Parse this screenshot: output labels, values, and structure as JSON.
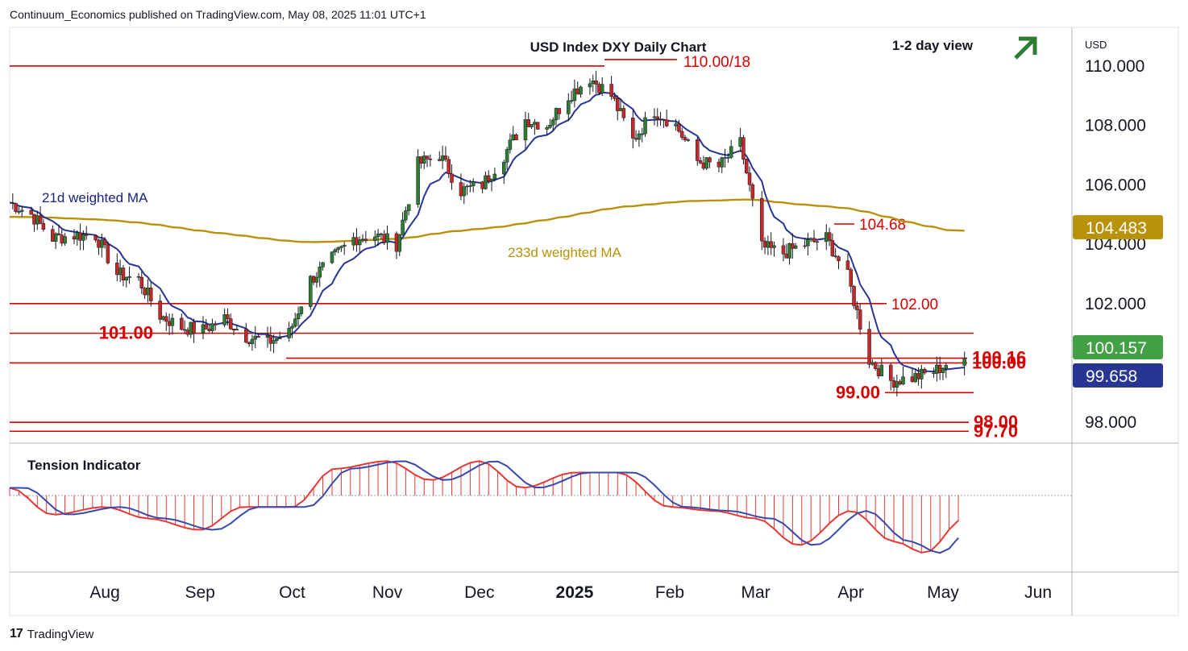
{
  "header": {
    "publisher": "Continuum_Economics published on TradingView.com, May 08, 2025 11:01 UTC+1"
  },
  "footer": {
    "brand": "TradingView"
  },
  "colors": {
    "up_candle": "#2e7d32",
    "down_candle": "#c62828",
    "level_line": "#d50000",
    "ma21": "#283593",
    "ma233": "#b8920a",
    "tension_red": "#e53935",
    "tension_blue": "#3949ab",
    "price_badge_gold": "#b8920a",
    "price_badge_green": "#43a047",
    "price_badge_navy": "#283593",
    "arrow_green": "#2e7d32"
  },
  "chart_data": {
    "type": "candlestick",
    "title": "USD Index DXY Daily Chart",
    "view_label": "1-2 day view",
    "view_icon": "arrow-up-right-icon",
    "currency_label": "USD",
    "y_axis_ticks": [
      "110.000",
      "108.000",
      "106.000",
      "104.000",
      "102.000",
      "98.000"
    ],
    "ylim": [
      97.3,
      111.3
    ],
    "x_axis_ticks": [
      "Aug",
      "Sep",
      "Oct",
      "Nov",
      "Dec",
      "2025",
      "Feb",
      "Mar",
      "Apr",
      "May",
      "Jun"
    ],
    "time_range": [
      "2024-07-01",
      "2025-06-12"
    ],
    "price_badges": [
      {
        "label": "104.483",
        "value": 104.483,
        "color": "#b8920a"
      },
      {
        "label": "100.157",
        "value": 100.157,
        "color": "#43a047"
      },
      {
        "label": "99.658",
        "value": 99.658,
        "color": "#283593"
      }
    ],
    "levels": [
      {
        "label": "110.00/18",
        "value": 110.0
      },
      {
        "label": "104.68",
        "value": 104.68
      },
      {
        "label": "102.00",
        "value": 102.0
      },
      {
        "label": "101.00",
        "value": 101.0
      },
      {
        "label": "100.16",
        "value": 100.16
      },
      {
        "label": "100.00",
        "value": 100.0
      },
      {
        "label": "99.00",
        "value": 99.0
      },
      {
        "label": "98.00",
        "value": 98.0
      },
      {
        "label": "97.70",
        "value": 97.7
      }
    ],
    "annotations": [
      "21d weighted MA",
      "233d weighted MA"
    ],
    "close_series": [
      [
        "2024-07-01",
        105.4
      ],
      [
        "2024-07-08",
        105.0
      ],
      [
        "2024-07-15",
        104.2
      ],
      [
        "2024-07-22",
        104.3
      ],
      [
        "2024-07-29",
        104.3
      ],
      [
        "2024-08-05",
        103.0
      ],
      [
        "2024-08-12",
        102.8
      ],
      [
        "2024-08-19",
        101.6
      ],
      [
        "2024-08-26",
        101.2
      ],
      [
        "2024-09-02",
        101.1
      ],
      [
        "2024-09-09",
        101.5
      ],
      [
        "2024-09-16",
        100.9
      ],
      [
        "2024-09-23",
        100.7
      ],
      [
        "2024-09-30",
        101.0
      ],
      [
        "2024-10-07",
        102.8
      ],
      [
        "2024-10-14",
        103.5
      ],
      [
        "2024-10-21",
        104.2
      ],
      [
        "2024-10-28",
        104.3
      ],
      [
        "2024-11-04",
        104.0
      ],
      [
        "2024-11-11",
        106.7
      ],
      [
        "2024-11-18",
        107.0
      ],
      [
        "2024-11-25",
        105.8
      ],
      [
        "2024-12-02",
        106.0
      ],
      [
        "2024-12-09",
        107.0
      ],
      [
        "2024-12-16",
        108.2
      ],
      [
        "2024-12-23",
        108.0
      ],
      [
        "2024-12-30",
        109.0
      ],
      [
        "2025-01-06",
        109.6
      ],
      [
        "2025-01-13",
        109.0
      ],
      [
        "2025-01-20",
        107.5
      ],
      [
        "2025-01-27",
        108.5
      ],
      [
        "2025-02-03",
        108.0
      ],
      [
        "2025-02-10",
        106.8
      ],
      [
        "2025-02-17",
        106.6
      ],
      [
        "2025-02-24",
        107.4
      ],
      [
        "2025-03-03",
        103.9
      ],
      [
        "2025-03-10",
        103.7
      ],
      [
        "2025-03-17",
        104.0
      ],
      [
        "2025-03-24",
        104.2
      ],
      [
        "2025-03-31",
        102.9
      ],
      [
        "2025-04-07",
        100.1
      ],
      [
        "2025-04-14",
        99.4
      ],
      [
        "2025-04-21",
        99.5
      ],
      [
        "2025-04-28",
        99.7
      ],
      [
        "2025-05-05",
        100.16
      ]
    ],
    "tension_indicator": {
      "title": "Tension Indicator",
      "values": [
        [
          "2024-07-01",
          0.1
        ],
        [
          "2024-07-15",
          -0.25
        ],
        [
          "2024-08-01",
          -0.15
        ],
        [
          "2024-08-15",
          -0.3
        ],
        [
          "2024-09-01",
          -0.45
        ],
        [
          "2024-09-15",
          -0.15
        ],
        [
          "2024-10-01",
          -0.15
        ],
        [
          "2024-10-15",
          0.35
        ],
        [
          "2024-11-01",
          0.45
        ],
        [
          "2024-11-15",
          0.2
        ],
        [
          "2024-12-01",
          0.45
        ],
        [
          "2024-12-15",
          0.1
        ],
        [
          "2025-01-01",
          0.3
        ],
        [
          "2025-01-15",
          0.3
        ],
        [
          "2025-02-01",
          -0.15
        ],
        [
          "2025-02-15",
          -0.2
        ],
        [
          "2025-03-01",
          -0.3
        ],
        [
          "2025-03-15",
          -0.65
        ],
        [
          "2025-04-01",
          -0.2
        ],
        [
          "2025-04-15",
          -0.6
        ],
        [
          "2025-04-25",
          -0.75
        ],
        [
          "2025-05-08",
          -0.3
        ]
      ]
    }
  }
}
